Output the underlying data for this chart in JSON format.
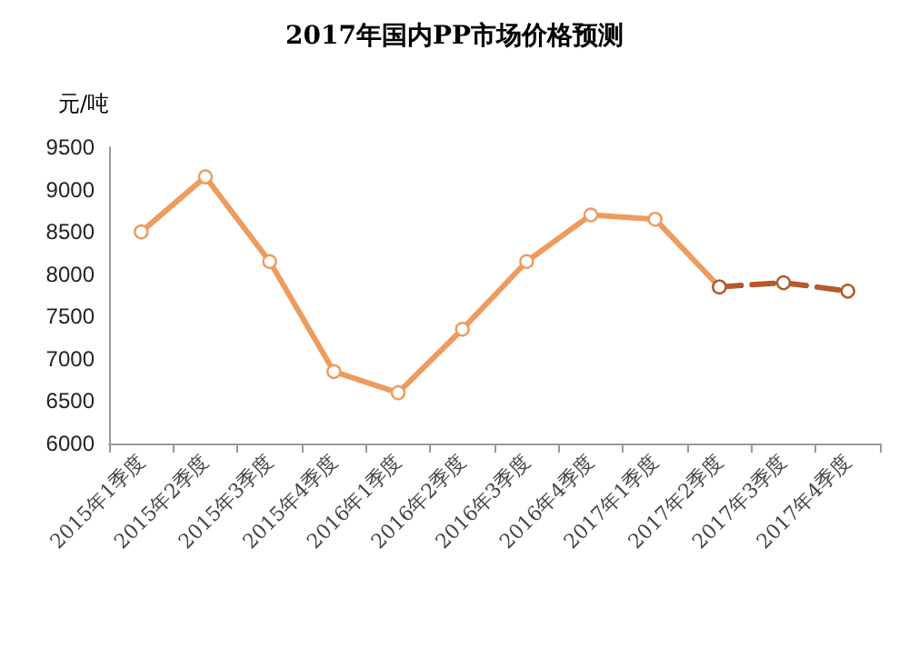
{
  "chart_data": {
    "type": "line",
    "title": "2017年国内PP市场价格预测",
    "ylabel": "元/吨",
    "categories": [
      "2015年1季度",
      "2015年2季度",
      "2015年3季度",
      "2015年4季度",
      "2016年1季度",
      "2016年2季度",
      "2016年3季度",
      "2016年4季度",
      "2017年1季度",
      "2017年2季度",
      "2017年3季度",
      "2017年4季度"
    ],
    "series": [
      {
        "color": "#ef9a5e",
        "line_style": "solid",
        "values": [
          8500,
          9150,
          8150,
          6850,
          6600,
          7350,
          8150,
          8700,
          8650,
          7850,
          null,
          null
        ]
      },
      {
        "color": "#b5592a",
        "line_style": "dashed",
        "values": [
          null,
          null,
          null,
          null,
          null,
          null,
          null,
          null,
          null,
          7850,
          7900,
          7800
        ]
      }
    ],
    "ylim": [
      6000,
      9500
    ],
    "yticks": [
      6000,
      6500,
      7000,
      7500,
      8000,
      8500,
      9000,
      9500
    ],
    "grid": false,
    "marker": "circle"
  }
}
